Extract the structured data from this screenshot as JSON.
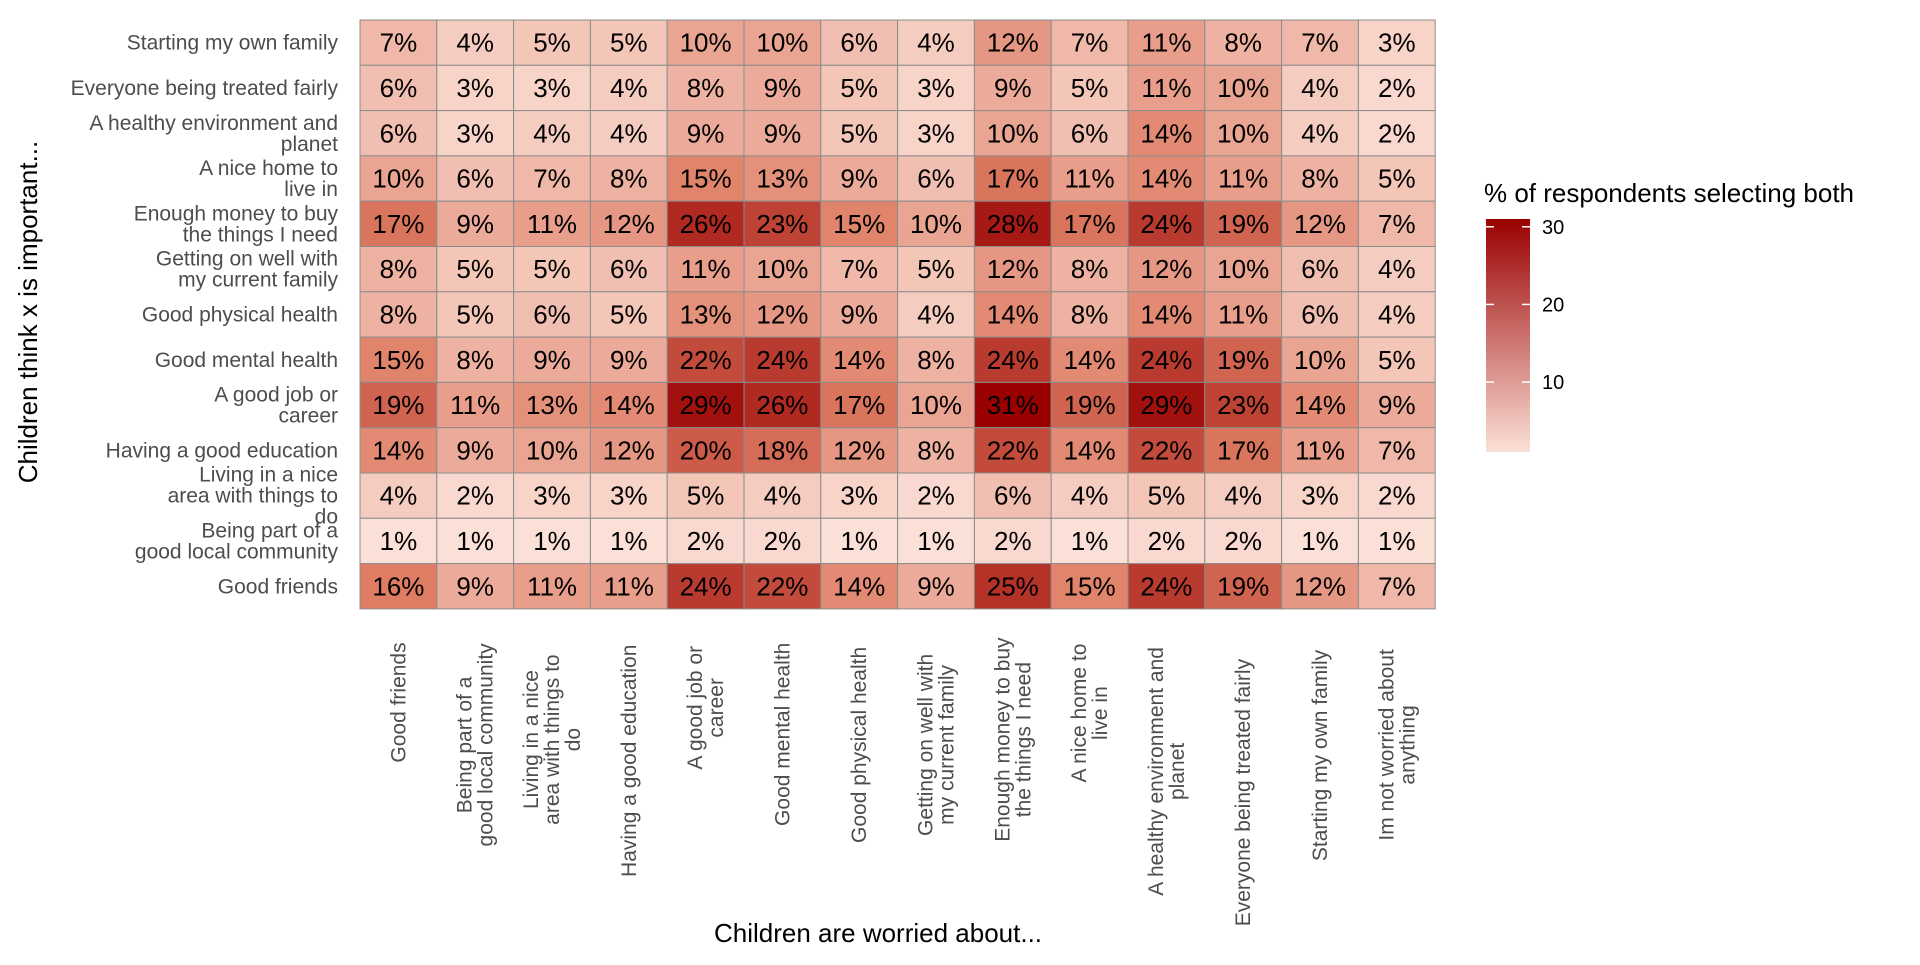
{
  "chart_data": {
    "type": "heatmap",
    "xlabel": "Children are worried about...",
    "ylabel": "Children think x is important...",
    "x_categories": [
      [
        "Good friends"
      ],
      [
        "Being part of a",
        "good local community"
      ],
      [
        "Living in a nice",
        "area with things to",
        "do"
      ],
      [
        "Having a good education"
      ],
      [
        "A good job or",
        "career"
      ],
      [
        "Good mental health"
      ],
      [
        "Good physical health"
      ],
      [
        "Getting on well with",
        "my current family"
      ],
      [
        "Enough money to buy",
        "the things I need"
      ],
      [
        "A nice home to",
        "live in"
      ],
      [
        "A healthy environment and",
        "planet"
      ],
      [
        "Everyone being treated fairly"
      ],
      [
        "Starting my own family"
      ],
      [
        "Im not worried about",
        "anything"
      ]
    ],
    "y_categories": [
      [
        "Starting my own family"
      ],
      [
        "Everyone being treated fairly"
      ],
      [
        "A healthy environment and",
        "planet"
      ],
      [
        "A nice home to",
        "live in"
      ],
      [
        "Enough money to buy",
        "the things I need"
      ],
      [
        "Getting on well with",
        "my current family"
      ],
      [
        "Good physical health"
      ],
      [
        "Good mental health"
      ],
      [
        "A good job or",
        "career"
      ],
      [
        "Having a good education"
      ],
      [
        "Living in a nice",
        "area with things to",
        "do"
      ],
      [
        "Being part of a",
        "good local community"
      ],
      [
        "Good friends"
      ]
    ],
    "values": [
      [
        7,
        4,
        5,
        5,
        10,
        10,
        6,
        4,
        12,
        7,
        11,
        8,
        7,
        3
      ],
      [
        6,
        3,
        3,
        4,
        8,
        9,
        5,
        3,
        9,
        5,
        11,
        10,
        4,
        2
      ],
      [
        6,
        3,
        4,
        4,
        9,
        9,
        5,
        3,
        10,
        6,
        14,
        10,
        4,
        2
      ],
      [
        10,
        6,
        7,
        8,
        15,
        13,
        9,
        6,
        17,
        11,
        14,
        11,
        8,
        5
      ],
      [
        17,
        9,
        11,
        12,
        26,
        23,
        15,
        10,
        28,
        17,
        24,
        19,
        12,
        7
      ],
      [
        8,
        5,
        5,
        6,
        11,
        10,
        7,
        5,
        12,
        8,
        12,
        10,
        6,
        4
      ],
      [
        8,
        5,
        6,
        5,
        13,
        12,
        9,
        4,
        14,
        8,
        14,
        11,
        6,
        4
      ],
      [
        15,
        8,
        9,
        9,
        22,
        24,
        14,
        8,
        24,
        14,
        24,
        19,
        10,
        5
      ],
      [
        19,
        11,
        13,
        14,
        29,
        26,
        17,
        10,
        31,
        19,
        29,
        23,
        14,
        9
      ],
      [
        14,
        9,
        10,
        12,
        20,
        18,
        12,
        8,
        22,
        14,
        22,
        17,
        11,
        7
      ],
      [
        4,
        2,
        3,
        3,
        5,
        4,
        3,
        2,
        6,
        4,
        5,
        4,
        3,
        2
      ],
      [
        1,
        1,
        1,
        1,
        2,
        2,
        1,
        1,
        2,
        1,
        2,
        2,
        1,
        1
      ],
      [
        16,
        9,
        11,
        11,
        24,
        22,
        14,
        9,
        25,
        15,
        24,
        19,
        12,
        7
      ]
    ],
    "value_suffix": "%",
    "legend": {
      "title": "% of respondents selecting both",
      "ticks": [
        10,
        20,
        30
      ],
      "range": [
        1,
        31
      ],
      "low_color": "#fbe0d7",
      "high_color": "#990000"
    },
    "grid_color": "#8c8c8c",
    "legend_placement": "right"
  }
}
